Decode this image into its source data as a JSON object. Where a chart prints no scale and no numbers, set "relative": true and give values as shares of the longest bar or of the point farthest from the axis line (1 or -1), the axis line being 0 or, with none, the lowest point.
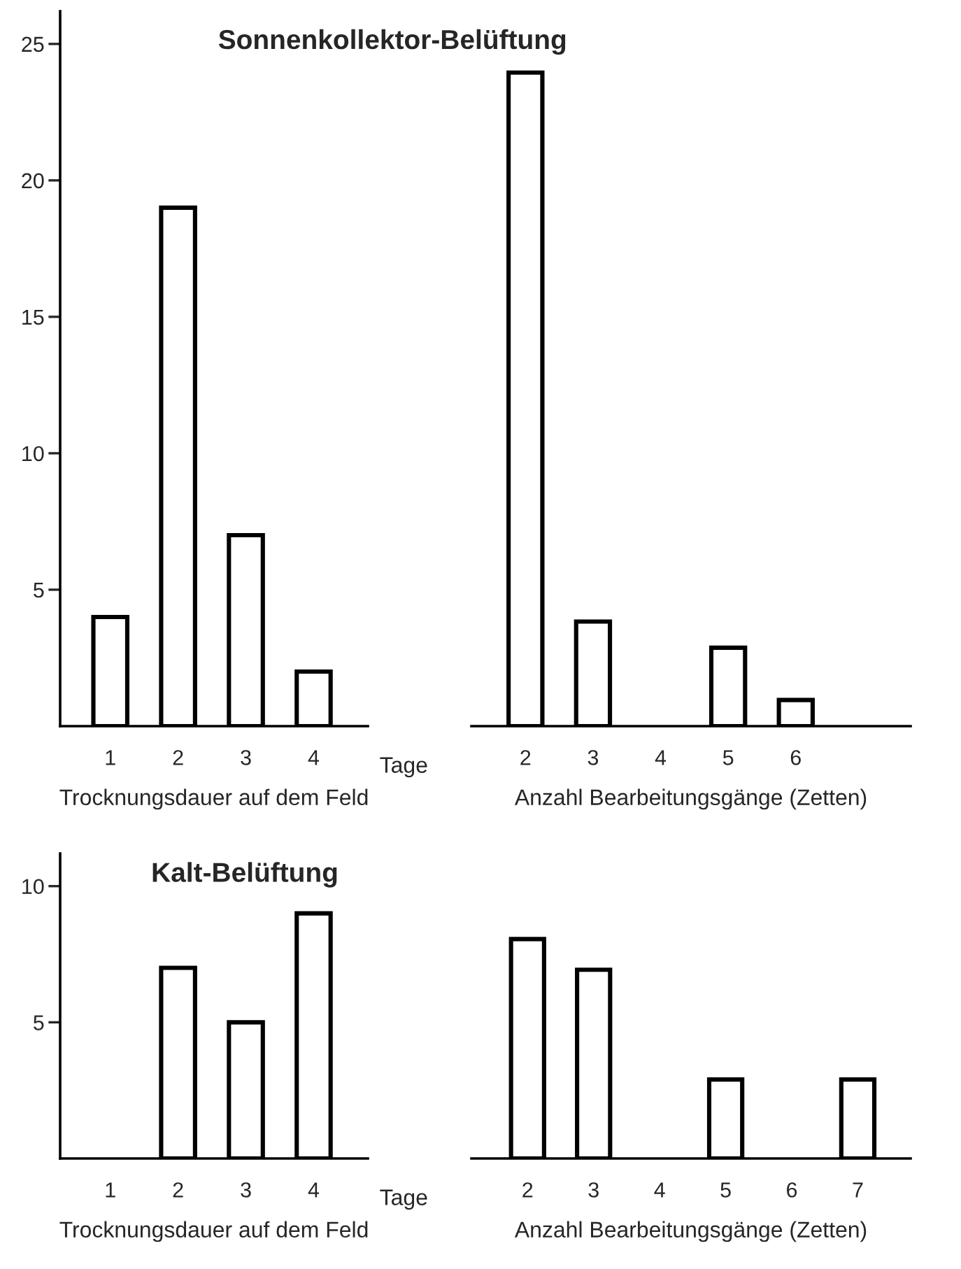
{
  "chart_data": [
    {
      "type": "bar",
      "title": "Sonnenkollektor-Belüftung",
      "xlabel": "Trocknungsdauer auf dem Feld",
      "annotations": [
        "Tage"
      ],
      "categories": [
        "1",
        "2",
        "3",
        "4"
      ],
      "values": [
        4,
        19,
        7,
        2
      ],
      "color": "#ffffff",
      "ylim": [
        0,
        26.2
      ],
      "yticks": [
        5,
        10,
        15,
        20,
        25
      ]
    },
    {
      "type": "bar",
      "xlabel": "Anzahl Bearbeitungsgänge (Zetten)",
      "categories": [
        "2",
        "3",
        "4",
        "5",
        "6"
      ],
      "values": [
        1,
        0.16,
        0,
        0.12,
        0.04
      ],
      "color": "#ffffff",
      "relative": true
    },
    {
      "type": "bar",
      "title": "Kalt-Belüftung",
      "xlabel": "Trocknungsdauer auf dem Feld",
      "annotations": [
        "Tage"
      ],
      "categories": [
        "1",
        "2",
        "3",
        "4"
      ],
      "values": [
        0,
        7,
        5,
        9
      ],
      "color": "#ffffff",
      "ylim": [
        0,
        11.2
      ],
      "yticks": [
        5,
        10
      ]
    },
    {
      "type": "bar",
      "xlabel": "Anzahl Bearbeitungsgänge (Zetten)",
      "categories": [
        "2",
        "3",
        "4",
        "5",
        "6",
        "7"
      ],
      "values": [
        1,
        0.86,
        0,
        0.36,
        0,
        0.36
      ],
      "color": "#ffffff",
      "relative": true
    }
  ]
}
